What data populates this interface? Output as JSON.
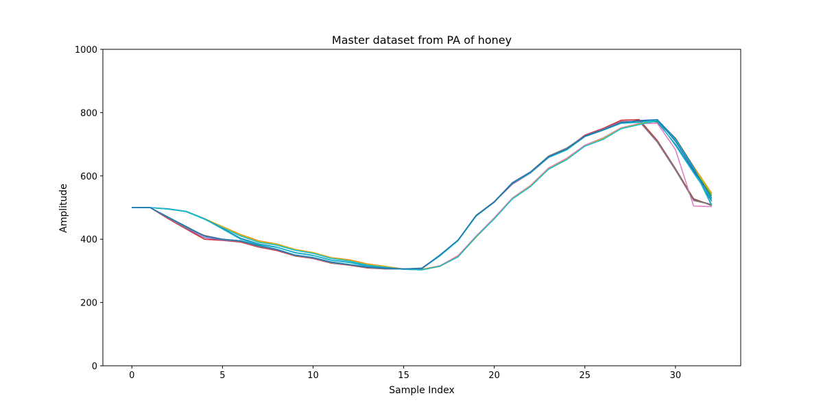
{
  "chart_data": {
    "type": "line",
    "title": "Master dataset from PA of honey",
    "xlabel": "Sample Index",
    "ylabel": "Amplitude",
    "xlim": [
      -1.6,
      33.6
    ],
    "ylim": [
      0,
      1000
    ],
    "xticks": [
      0,
      5,
      10,
      15,
      20,
      25,
      30
    ],
    "yticks": [
      0,
      200,
      400,
      600,
      800,
      1000
    ],
    "grid": false,
    "legend": "none",
    "x": [
      0,
      1,
      2,
      3,
      4,
      5,
      6,
      7,
      8,
      9,
      10,
      11,
      12,
      13,
      14,
      15,
      16,
      17,
      18,
      19,
      20,
      21,
      22,
      23,
      24,
      25,
      26,
      27,
      28,
      29,
      30,
      31,
      32
    ],
    "series": [
      {
        "color": "#1f77b4",
        "values": [
          500,
          500,
          470,
          440,
          410,
          400,
          395,
          380,
          368,
          350,
          342,
          328,
          320,
          312,
          308,
          306,
          307,
          350,
          397,
          475,
          517,
          578,
          612,
          660,
          685,
          725,
          745,
          768,
          775,
          770,
          700,
          615,
          520
        ]
      },
      {
        "color": "#ff7f0e",
        "values": [
          500,
          500,
          495,
          488,
          465,
          440,
          415,
          395,
          385,
          368,
          358,
          342,
          335,
          322,
          314,
          306,
          305,
          316,
          348,
          410,
          465,
          530,
          570,
          625,
          655,
          695,
          718,
          750,
          765,
          775,
          720,
          630,
          545
        ]
      },
      {
        "color": "#2ca02c",
        "values": [
          500,
          500,
          495,
          487,
          464,
          437,
          411,
          391,
          382,
          366,
          356,
          340,
          332,
          319,
          312,
          305,
          303,
          314,
          345,
          408,
          466,
          530,
          568,
          623,
          654,
          697,
          720,
          752,
          764,
          773,
          714,
          621,
          537
        ]
      },
      {
        "color": "#d62728",
        "values": [
          500,
          500,
          465,
          432,
          400,
          396,
          391,
          375,
          364,
          347,
          339,
          324,
          318,
          309,
          306,
          306,
          308,
          348,
          396,
          474,
          518,
          574,
          609,
          658,
          686,
          729,
          750,
          776,
          778,
          712,
          623,
          528,
          506
        ]
      },
      {
        "color": "#9467bd",
        "values": [
          500,
          500,
          467,
          434,
          405,
          397,
          393,
          377,
          366,
          348,
          340,
          325,
          319,
          310,
          306,
          306,
          308,
          348,
          396,
          474,
          518,
          574,
          609,
          660,
          688,
          727,
          748,
          772,
          772,
          706,
          618,
          524,
          510
        ]
      },
      {
        "color": "#8c564b",
        "values": [
          500,
          500,
          469,
          437,
          412,
          400,
          394,
          378,
          367,
          349,
          341,
          326,
          319,
          310,
          307,
          306,
          308,
          349,
          397,
          474,
          517,
          577,
          611,
          661,
          686,
          726,
          746,
          770,
          774,
          709,
          622,
          527,
          508
        ]
      },
      {
        "color": "#e377c2",
        "values": [
          500,
          500,
          495,
          487,
          464,
          438,
          412,
          392,
          383,
          366,
          356,
          340,
          333,
          319,
          312,
          305,
          303,
          316,
          347,
          410,
          468,
          530,
          570,
          625,
          656,
          697,
          720,
          752,
          766,
          766,
          683,
          505,
          503
        ]
      },
      {
        "color": "#7f7f7f",
        "values": [
          500,
          500,
          468,
          436,
          410,
          399,
          393,
          377,
          367,
          348,
          341,
          325,
          320,
          310,
          307,
          306,
          309,
          349,
          397,
          476,
          519,
          579,
          613,
          663,
          688,
          726,
          747,
          769,
          773,
          708,
          620,
          522,
          509
        ]
      },
      {
        "color": "#bcbd22",
        "values": [
          500,
          500,
          495,
          488,
          465,
          439,
          413,
          393,
          384,
          367,
          357,
          341,
          333,
          320,
          313,
          305,
          304,
          314,
          344,
          406,
          465,
          528,
          568,
          622,
          653,
          694,
          718,
          750,
          764,
          776,
          717,
          627,
          542
        ]
      },
      {
        "color": "#17becf",
        "values": [
          500,
          500,
          495,
          487,
          463,
          436,
          410,
          390,
          381,
          365,
          355,
          339,
          331,
          318,
          311,
          305,
          303,
          315,
          344,
          408,
          464,
          527,
          566,
          621,
          651,
          694,
          715,
          749,
          762,
          775,
          696,
          609,
          526
        ]
      },
      {
        "color": "#1f77b4",
        "values": [
          500,
          500,
          496,
          488,
          465,
          434,
          403,
          385,
          375,
          358,
          349,
          334,
          327,
          315,
          309,
          306,
          308,
          348,
          396,
          474,
          518,
          578,
          611,
          659,
          683,
          726,
          745,
          767,
          770,
          778,
          718,
          628,
          508
        ]
      },
      {
        "color": "#17becf",
        "values": [
          500,
          500,
          495,
          488,
          464,
          432,
          400,
          383,
          374,
          357,
          348,
          333,
          326,
          314,
          308,
          305,
          307,
          347,
          395,
          473,
          517,
          577,
          610,
          658,
          682,
          724,
          744,
          766,
          769,
          776,
          714,
          624,
          505
        ]
      },
      {
        "color": "#1f77b4",
        "values": [
          500,
          500,
          470,
          440,
          410,
          400,
          395,
          380,
          368,
          350,
          342,
          328,
          320,
          312,
          308,
          306,
          307,
          350,
          397,
          475,
          517,
          578,
          612,
          660,
          685,
          725,
          745,
          768,
          775,
          778,
          709,
          620,
          530
        ]
      }
    ]
  }
}
